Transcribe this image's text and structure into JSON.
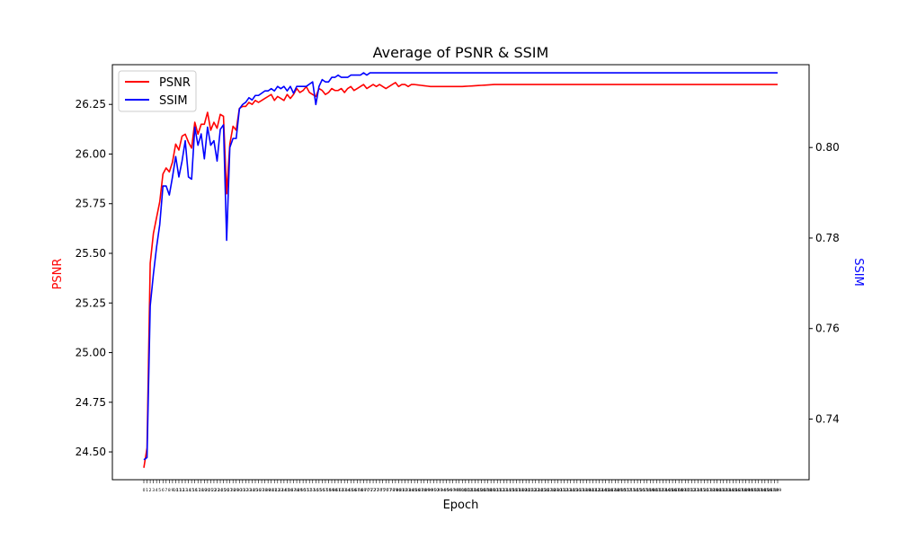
{
  "chart_data": {
    "type": "line",
    "title": "Average of PSNR & SSIM",
    "xlabel": "Epoch",
    "ylabel_left": "PSNR",
    "ylabel_right": "SSIM",
    "left_axis_color": "#ff0000",
    "right_axis_color": "#0000ff",
    "x_range": [
      0,
      199
    ],
    "ylim_left": [
      24.36,
      26.45
    ],
    "ylim_right": [
      0.7266,
      0.8183
    ],
    "yticks_left": [
      "24.50",
      "24.75",
      "25.00",
      "25.25",
      "25.50",
      "25.75",
      "26.00",
      "26.25"
    ],
    "yticks_right": [
      "0.74",
      "0.76",
      "0.78",
      "0.80"
    ],
    "legend_position": "top-left",
    "series": [
      {
        "name": "PSNR",
        "axis": "left",
        "color": "#ff0000",
        "keypoints": [
          [
            0,
            24.42
          ],
          [
            1,
            24.52
          ],
          [
            2,
            25.45
          ],
          [
            3,
            25.6
          ],
          [
            4,
            25.68
          ],
          [
            5,
            25.76
          ],
          [
            6,
            25.9
          ],
          [
            7,
            25.93
          ],
          [
            8,
            25.91
          ],
          [
            9,
            25.96
          ],
          [
            10,
            26.05
          ],
          [
            11,
            26.02
          ],
          [
            12,
            26.09
          ],
          [
            13,
            26.1
          ],
          [
            14,
            26.06
          ],
          [
            15,
            26.03
          ],
          [
            16,
            26.16
          ],
          [
            17,
            26.1
          ],
          [
            18,
            26.15
          ],
          [
            19,
            26.15
          ],
          [
            20,
            26.21
          ],
          [
            21,
            26.12
          ],
          [
            22,
            26.16
          ],
          [
            23,
            26.13
          ],
          [
            24,
            26.2
          ],
          [
            25,
            26.19
          ],
          [
            26,
            25.8
          ],
          [
            27,
            26.05
          ],
          [
            28,
            26.14
          ],
          [
            29,
            26.12
          ],
          [
            30,
            26.23
          ],
          [
            31,
            26.24
          ],
          [
            32,
            26.24
          ],
          [
            33,
            26.26
          ],
          [
            34,
            26.25
          ],
          [
            35,
            26.27
          ],
          [
            36,
            26.26
          ],
          [
            37,
            26.27
          ],
          [
            38,
            26.28
          ],
          [
            39,
            26.29
          ],
          [
            40,
            26.3
          ],
          [
            41,
            26.27
          ],
          [
            42,
            26.29
          ],
          [
            43,
            26.28
          ],
          [
            44,
            26.27
          ],
          [
            45,
            26.3
          ],
          [
            46,
            26.28
          ],
          [
            47,
            26.3
          ],
          [
            48,
            26.33
          ],
          [
            49,
            26.31
          ],
          [
            50,
            26.32
          ],
          [
            51,
            26.34
          ],
          [
            52,
            26.31
          ],
          [
            53,
            26.3
          ],
          [
            54,
            26.29
          ],
          [
            55,
            26.33
          ],
          [
            56,
            26.32
          ],
          [
            57,
            26.3
          ],
          [
            58,
            26.31
          ],
          [
            59,
            26.33
          ],
          [
            60,
            26.32
          ],
          [
            61,
            26.32
          ],
          [
            62,
            26.33
          ],
          [
            63,
            26.31
          ],
          [
            64,
            26.33
          ],
          [
            65,
            26.34
          ],
          [
            66,
            26.32
          ],
          [
            67,
            26.33
          ],
          [
            68,
            26.34
          ],
          [
            69,
            26.35
          ],
          [
            70,
            26.33
          ],
          [
            71,
            26.34
          ],
          [
            72,
            26.35
          ],
          [
            73,
            26.34
          ],
          [
            74,
            26.35
          ],
          [
            75,
            26.34
          ],
          [
            76,
            26.33
          ],
          [
            77,
            26.34
          ],
          [
            78,
            26.35
          ],
          [
            79,
            26.36
          ],
          [
            80,
            26.34
          ],
          [
            81,
            26.35
          ],
          [
            82,
            26.35
          ],
          [
            83,
            26.34
          ],
          [
            84,
            26.35
          ],
          [
            85,
            26.35
          ],
          [
            90,
            26.34
          ],
          [
            100,
            26.34
          ],
          [
            110,
            26.35
          ],
          [
            120,
            26.35
          ],
          [
            130,
            26.35
          ],
          [
            140,
            26.35
          ],
          [
            150,
            26.35
          ],
          [
            160,
            26.35
          ],
          [
            170,
            26.35
          ],
          [
            180,
            26.35
          ],
          [
            190,
            26.35
          ],
          [
            199,
            26.35
          ]
        ]
      },
      {
        "name": "SSIM",
        "axis": "right",
        "color": "#0000ff",
        "keypoints": [
          [
            0,
            0.731
          ],
          [
            1,
            0.7315
          ],
          [
            2,
            0.765
          ],
          [
            3,
            0.772
          ],
          [
            4,
            0.778
          ],
          [
            5,
            0.783
          ],
          [
            6,
            0.7915
          ],
          [
            7,
            0.7915
          ],
          [
            8,
            0.7895
          ],
          [
            9,
            0.7935
          ],
          [
            10,
            0.798
          ],
          [
            11,
            0.7935
          ],
          [
            12,
            0.797
          ],
          [
            13,
            0.8015
          ],
          [
            14,
            0.7935
          ],
          [
            15,
            0.793
          ],
          [
            16,
            0.8045
          ],
          [
            17,
            0.8005
          ],
          [
            18,
            0.803
          ],
          [
            19,
            0.7975
          ],
          [
            20,
            0.8045
          ],
          [
            21,
            0.8005
          ],
          [
            22,
            0.8015
          ],
          [
            23,
            0.797
          ],
          [
            24,
            0.804
          ],
          [
            25,
            0.805
          ],
          [
            26,
            0.7795
          ],
          [
            27,
            0.8
          ],
          [
            28,
            0.802
          ],
          [
            29,
            0.802
          ],
          [
            30,
            0.8085
          ],
          [
            31,
            0.8095
          ],
          [
            32,
            0.81
          ],
          [
            33,
            0.811
          ],
          [
            34,
            0.8105
          ],
          [
            35,
            0.8115
          ],
          [
            36,
            0.8115
          ],
          [
            37,
            0.812
          ],
          [
            38,
            0.8125
          ],
          [
            39,
            0.8125
          ],
          [
            40,
            0.813
          ],
          [
            41,
            0.8125
          ],
          [
            42,
            0.8135
          ],
          [
            43,
            0.813
          ],
          [
            44,
            0.8135
          ],
          [
            45,
            0.8125
          ],
          [
            46,
            0.8135
          ],
          [
            47,
            0.812
          ],
          [
            48,
            0.8135
          ],
          [
            49,
            0.8135
          ],
          [
            50,
            0.8135
          ],
          [
            51,
            0.8135
          ],
          [
            52,
            0.814
          ],
          [
            53,
            0.8145
          ],
          [
            54,
            0.8095
          ],
          [
            55,
            0.8135
          ],
          [
            56,
            0.815
          ],
          [
            57,
            0.8145
          ],
          [
            58,
            0.8145
          ],
          [
            59,
            0.8155
          ],
          [
            60,
            0.8155
          ],
          [
            61,
            0.816
          ],
          [
            62,
            0.8155
          ],
          [
            63,
            0.8155
          ],
          [
            64,
            0.8155
          ],
          [
            65,
            0.816
          ],
          [
            66,
            0.816
          ],
          [
            67,
            0.816
          ],
          [
            68,
            0.816
          ],
          [
            69,
            0.8165
          ],
          [
            70,
            0.816
          ],
          [
            71,
            0.8165
          ],
          [
            72,
            0.8165
          ],
          [
            73,
            0.8165
          ],
          [
            74,
            0.8165
          ],
          [
            75,
            0.8165
          ],
          [
            76,
            0.8165
          ],
          [
            77,
            0.8165
          ],
          [
            78,
            0.8165
          ],
          [
            79,
            0.8165
          ],
          [
            80,
            0.8165
          ],
          [
            90,
            0.8165
          ],
          [
            100,
            0.8165
          ],
          [
            110,
            0.8165
          ],
          [
            120,
            0.8165
          ],
          [
            130,
            0.8165
          ],
          [
            140,
            0.8165
          ],
          [
            150,
            0.8165
          ],
          [
            160,
            0.8165
          ],
          [
            170,
            0.8165
          ],
          [
            180,
            0.8165
          ],
          [
            190,
            0.8165
          ],
          [
            199,
            0.8165
          ]
        ]
      }
    ]
  }
}
